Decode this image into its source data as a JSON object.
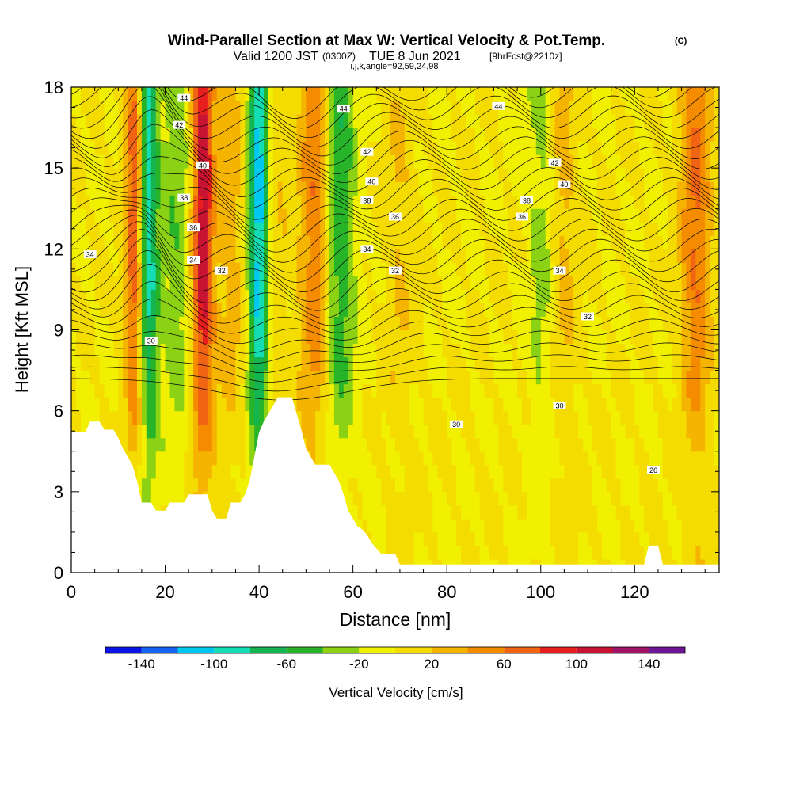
{
  "header": {
    "title_main": "Wind-Parallel Section at Max W: Vertical Velocity & Pot.Temp.",
    "title_mark": "(C)",
    "valid_prefix": "Valid 1200 JST",
    "valid_zone": "(0300Z)",
    "valid_date": "TUE 8 Jun 2021",
    "forecast": "[9hrFcst@2210z]",
    "indices": "i,j,k,angle=92,59,24,98"
  },
  "chart_data": {
    "type": "heatmap",
    "xlabel": "Distance [nm]",
    "ylabel": "Height [Kft MSL]",
    "xlim": [
      0,
      138
    ],
    "ylim": [
      0,
      18
    ],
    "x_ticks": [
      0,
      20,
      40,
      60,
      80,
      100,
      120
    ],
    "y_ticks": [
      0,
      3,
      6,
      9,
      12,
      15,
      18
    ],
    "colorbar": {
      "label": "Vertical Velocity [cm/s]",
      "tick_labels": [
        "-140",
        "-100",
        "-60",
        "-20",
        "20",
        "60",
        "100",
        "140"
      ],
      "tick_values": [
        -140,
        -100,
        -60,
        -20,
        20,
        60,
        100,
        140
      ],
      "levels": [
        -160,
        -140,
        -120,
        -100,
        -80,
        -60,
        -40,
        -20,
        0,
        20,
        40,
        60,
        80,
        100,
        120,
        140,
        160
      ],
      "colors": [
        "#0a14e6",
        "#1464f0",
        "#00c8f0",
        "#14dcb4",
        "#14b450",
        "#28b428",
        "#8cd214",
        "#f0f000",
        "#f5dc00",
        "#f5b400",
        "#f58c00",
        "#f06414",
        "#e61e1e",
        "#c81432",
        "#a01464",
        "#6e1496"
      ]
    },
    "vertical_velocity_bands": [
      {
        "x": 14,
        "w_cm_s": 110
      },
      {
        "x": 16,
        "w_cm_s": -130
      },
      {
        "x": 19,
        "w_cm_s": 10
      },
      {
        "x": 22,
        "w_cm_s": -40
      },
      {
        "x": 28,
        "w_cm_s": 110
      },
      {
        "x": 34,
        "w_cm_s": 30
      },
      {
        "x": 40,
        "w_cm_s": -130
      },
      {
        "x": 42,
        "w_cm_s": 30
      },
      {
        "x": 52,
        "w_cm_s": 60
      },
      {
        "x": 57,
        "w_cm_s": -60
      },
      {
        "x": 70,
        "w_cm_s": 20
      },
      {
        "x": 101,
        "w_cm_s": -40
      },
      {
        "x": 104,
        "w_cm_s": 40
      },
      {
        "x": 133,
        "w_cm_s": 60
      }
    ],
    "theta_contours": [
      {
        "label": "26",
        "label_x": 124,
        "label_y": 3.8
      },
      {
        "label": "30",
        "label_x": 17,
        "label_y": 8.6
      },
      {
        "label": "30",
        "label_x": 82,
        "label_y": 5.5
      },
      {
        "label": "30",
        "label_x": 104,
        "label_y": 6.2
      },
      {
        "label": "32",
        "label_x": 32,
        "label_y": 11.2
      },
      {
        "label": "32",
        "label_x": 69,
        "label_y": 11.2
      },
      {
        "label": "32",
        "label_x": 110,
        "label_y": 9.5
      },
      {
        "label": "34",
        "label_x": 4,
        "label_y": 11.8
      },
      {
        "label": "34",
        "label_x": 26,
        "label_y": 11.6
      },
      {
        "label": "34",
        "label_x": 63,
        "label_y": 12.0
      },
      {
        "label": "34",
        "label_x": 104,
        "label_y": 11.2
      },
      {
        "label": "36",
        "label_x": 26,
        "label_y": 12.8
      },
      {
        "label": "36",
        "label_x": 69,
        "label_y": 13.2
      },
      {
        "label": "36",
        "label_x": 96,
        "label_y": 13.2
      },
      {
        "label": "38",
        "label_x": 24,
        "label_y": 13.9
      },
      {
        "label": "38",
        "label_x": 63,
        "label_y": 13.8
      },
      {
        "label": "38",
        "label_x": 97,
        "label_y": 13.8
      },
      {
        "label": "40",
        "label_x": 28,
        "label_y": 15.1
      },
      {
        "label": "40",
        "label_x": 64,
        "label_y": 14.5
      },
      {
        "label": "40",
        "label_x": 105,
        "label_y": 14.4
      },
      {
        "label": "42",
        "label_x": 23,
        "label_y": 16.6
      },
      {
        "label": "42",
        "label_x": 63,
        "label_y": 15.6
      },
      {
        "label": "42",
        "label_x": 103,
        "label_y": 15.2
      },
      {
        "label": "44",
        "label_x": 24,
        "label_y": 17.6
      },
      {
        "label": "44",
        "label_x": 58,
        "label_y": 17.2
      },
      {
        "label": "44",
        "label_x": 91,
        "label_y": 17.3
      }
    ],
    "terrain": [
      [
        0,
        5.2
      ],
      [
        3,
        5.2
      ],
      [
        4,
        5.6
      ],
      [
        6,
        5.6
      ],
      [
        7,
        5.3
      ],
      [
        9,
        5.3
      ],
      [
        10,
        5.0
      ],
      [
        11,
        4.6
      ],
      [
        12,
        4.3
      ],
      [
        13,
        4.0
      ],
      [
        14,
        3.4
      ],
      [
        15,
        2.6
      ],
      [
        17,
        2.6
      ],
      [
        18,
        2.3
      ],
      [
        20,
        2.3
      ],
      [
        21,
        2.6
      ],
      [
        24,
        2.6
      ],
      [
        25,
        2.9
      ],
      [
        29,
        2.9
      ],
      [
        30,
        2.3
      ],
      [
        31,
        2.0
      ],
      [
        33,
        2.0
      ],
      [
        34,
        2.6
      ],
      [
        36,
        2.6
      ],
      [
        37,
        2.9
      ],
      [
        38,
        3.4
      ],
      [
        39,
        4.3
      ],
      [
        40,
        5.2
      ],
      [
        41,
        5.6
      ],
      [
        42,
        5.9
      ],
      [
        43,
        6.2
      ],
      [
        44,
        6.5
      ],
      [
        47,
        6.5
      ],
      [
        48,
        5.9
      ],
      [
        49,
        5.3
      ],
      [
        50,
        4.6
      ],
      [
        51,
        4.3
      ],
      [
        52,
        4.0
      ],
      [
        55,
        4.0
      ],
      [
        56,
        3.7
      ],
      [
        57,
        3.4
      ],
      [
        58,
        2.9
      ],
      [
        59,
        2.3
      ],
      [
        60,
        2.0
      ],
      [
        61,
        1.7
      ],
      [
        62,
        1.6
      ],
      [
        63,
        1.4
      ],
      [
        64,
        1.1
      ],
      [
        65,
        0.9
      ],
      [
        66,
        0.7
      ],
      [
        69,
        0.7
      ],
      [
        70,
        0.3
      ],
      [
        122,
        0.3
      ],
      [
        123,
        1.0
      ],
      [
        125,
        1.0
      ],
      [
        126,
        0.3
      ],
      [
        138,
        0.3
      ]
    ]
  }
}
